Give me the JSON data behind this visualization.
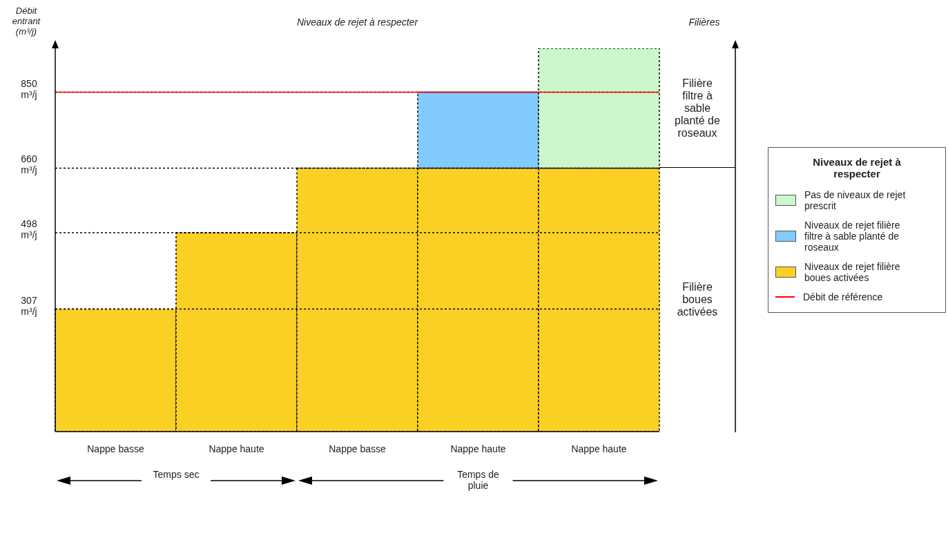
{
  "chart_data": {
    "type": "bar",
    "title": "Niveaux de rejet à respecter",
    "ylabel": "Débit entrant (m³/j)",
    "legend_title": "Niveaux de rejet à respecter",
    "categories": [
      "Nappe basse",
      "Nappe haute",
      "Nappe basse",
      "Nappe haute",
      "Nappe haute"
    ],
    "stacked": true,
    "series": [
      {
        "name": "Niveaux de rejet filière boues activées",
        "color": "#fbd024",
        "values": [
          307,
          498,
          660,
          660,
          660
        ]
      },
      {
        "name": "Niveaux de rejet filière filtre à sable planté de roseaux",
        "color": "#83caff",
        "values": [
          null,
          null,
          null,
          190,
          null
        ]
      },
      {
        "name": "Pas de niveaux de rejet prescrit",
        "color": "#ccf7cc",
        "values": [
          null,
          null,
          null,
          null,
          300
        ]
      }
    ],
    "ylim": [
      0,
      960
    ],
    "yticks": [
      {
        "value": 307,
        "label": "307 m³/j"
      },
      {
        "value": 498,
        "label": "498 m³/j"
      },
      {
        "value": 660,
        "label": "660 m³/j"
      },
      {
        "value": 850,
        "label": "850 m³/j"
      }
    ],
    "grid": "y",
    "ref_lines": [
      {
        "axis": "y",
        "value": 850,
        "label": "Débit de référence",
        "color": "#ff0000"
      }
    ],
    "legend": "right",
    "annotations": [
      {
        "text": "Filières"
      },
      "Filière filtre à sable planté de roseaux",
      "Filière boues activées",
      {
        "text": "Temps sec"
      },
      {
        "text": "Temps de pluie"
      }
    ]
  }
}
